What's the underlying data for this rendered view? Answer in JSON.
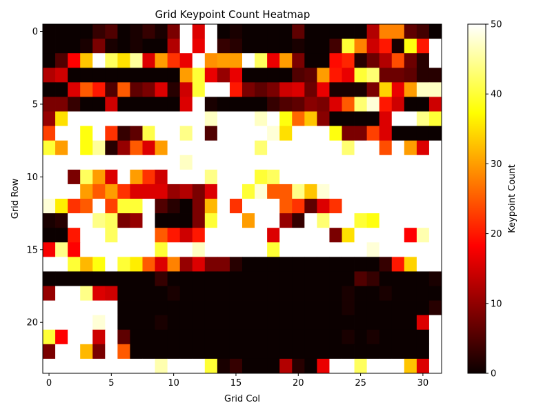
{
  "chart_data": {
    "type": "heatmap",
    "title": "Grid Keypoint Count Heatmap",
    "xlabel": "Grid Col",
    "ylabel": "Grid Row",
    "colorbar_label": "Keypoint Count",
    "colormap": "hot",
    "vmin": 0,
    "vmax": 50,
    "n_rows": 24,
    "n_cols": 32,
    "xticks": [
      0,
      5,
      10,
      15,
      20,
      25,
      30
    ],
    "yticks": [
      0,
      5,
      10,
      15,
      20
    ],
    "colorbar_ticks": [
      0,
      10,
      20,
      30,
      40,
      50
    ],
    "grid": false,
    "values": [
      [
        0,
        0,
        0,
        0,
        3,
        5,
        0,
        1,
        3,
        1,
        8,
        50,
        15,
        50,
        0,
        1,
        0,
        0,
        0,
        0,
        6,
        0,
        0,
        0,
        0,
        0,
        12,
        28,
        28,
        6,
        4,
        0
      ],
      [
        0,
        0,
        0,
        1,
        8,
        1,
        0,
        1,
        0,
        0,
        12,
        50,
        16,
        50,
        3,
        2,
        0,
        0,
        0,
        0,
        1,
        0,
        0,
        4,
        40,
        28,
        14,
        20,
        1,
        38,
        20,
        50
      ],
      [
        0,
        5,
        18,
        33,
        50,
        42,
        35,
        45,
        15,
        30,
        22,
        16,
        50,
        29,
        30,
        30,
        50,
        42,
        16,
        30,
        8,
        0,
        0,
        19,
        21,
        2,
        7,
        12,
        24,
        7,
        2,
        50
      ],
      [
        12,
        14,
        0,
        0,
        0,
        0,
        0,
        0,
        0,
        0,
        0,
        30,
        40,
        16,
        10,
        16,
        0,
        0,
        0,
        0,
        5,
        6,
        30,
        20,
        16,
        40,
        43,
        7,
        7,
        6,
        2,
        2
      ],
      [
        0,
        0,
        15,
        25,
        20,
        5,
        25,
        6,
        8,
        15,
        2,
        14,
        40,
        50,
        50,
        20,
        8,
        6,
        8,
        14,
        15,
        7,
        16,
        1,
        1,
        1,
        8,
        34,
        16,
        30,
        47,
        47
      ],
      [
        8,
        8,
        3,
        0,
        0,
        14,
        0,
        0,
        0,
        0,
        0,
        15,
        50,
        1,
        0,
        0,
        0,
        0,
        3,
        5,
        6,
        9,
        8,
        15,
        25,
        43,
        48,
        20,
        14,
        0,
        0,
        14
      ],
      [
        10,
        35,
        50,
        50,
        50,
        50,
        50,
        50,
        50,
        50,
        50,
        50,
        50,
        47,
        50,
        50,
        50,
        47,
        50,
        38,
        26,
        33,
        9,
        0,
        0,
        0,
        0,
        15,
        50,
        50,
        44,
        40
      ],
      [
        23,
        50,
        50,
        38,
        50,
        22,
        3,
        6,
        41,
        50,
        50,
        44,
        50,
        5,
        50,
        50,
        50,
        50,
        48,
        35,
        50,
        50,
        50,
        38,
        8,
        8,
        23,
        15,
        0,
        0,
        0,
        0
      ],
      [
        40,
        30,
        50,
        38,
        45,
        2,
        10,
        25,
        15,
        30,
        50,
        50,
        50,
        50,
        50,
        50,
        50,
        43,
        50,
        50,
        50,
        50,
        50,
        50,
        43,
        50,
        50,
        24,
        50,
        30,
        15,
        50
      ],
      [
        50,
        50,
        50,
        50,
        50,
        50,
        50,
        50,
        50,
        50,
        50,
        47,
        50,
        50,
        50,
        50,
        50,
        50,
        50,
        50,
        50,
        50,
        50,
        50,
        50,
        50,
        50,
        50,
        50,
        50,
        50,
        50
      ],
      [
        50,
        50,
        8,
        42,
        30,
        15,
        50,
        30,
        22,
        14,
        50,
        50,
        50,
        44,
        50,
        50,
        50,
        40,
        42,
        50,
        50,
        50,
        50,
        50,
        50,
        50,
        50,
        50,
        50,
        50,
        50,
        50
      ],
      [
        50,
        50,
        50,
        30,
        25,
        30,
        22,
        15,
        15,
        15,
        10,
        12,
        8,
        15,
        50,
        50,
        40,
        48,
        25,
        25,
        44,
        33,
        48,
        50,
        50,
        50,
        50,
        50,
        50,
        50,
        50,
        50
      ],
      [
        48,
        36,
        22,
        25,
        50,
        23,
        40,
        40,
        50,
        5,
        2,
        0,
        8,
        32,
        50,
        22,
        50,
        50,
        50,
        25,
        22,
        6,
        15,
        22,
        50,
        50,
        50,
        50,
        50,
        50,
        50,
        50
      ],
      [
        1,
        2,
        50,
        50,
        44,
        42,
        8,
        10,
        50,
        0,
        0,
        0,
        8,
        40,
        50,
        50,
        30,
        50,
        50,
        10,
        3,
        50,
        43,
        50,
        50,
        40,
        38,
        50,
        50,
        50,
        50,
        50
      ],
      [
        0,
        0,
        20,
        50,
        50,
        42,
        50,
        50,
        50,
        25,
        20,
        14,
        20,
        50,
        50,
        50,
        50,
        50,
        15,
        50,
        50,
        50,
        50,
        8,
        35,
        50,
        50,
        50,
        50,
        18,
        46,
        50
      ],
      [
        17,
        44,
        18,
        50,
        50,
        50,
        50,
        50,
        50,
        40,
        50,
        50,
        47,
        50,
        50,
        50,
        50,
        50,
        40,
        50,
        50,
        50,
        50,
        50,
        50,
        50,
        48,
        50,
        50,
        50,
        50,
        50
      ],
      [
        50,
        50,
        40,
        32,
        38,
        50,
        40,
        36,
        25,
        15,
        28,
        10,
        15,
        8,
        8,
        2,
        0,
        0,
        0,
        0,
        0,
        0,
        0,
        0,
        0,
        0,
        0,
        3,
        20,
        34,
        50,
        50
      ],
      [
        0,
        0,
        0,
        0,
        0,
        0,
        0,
        0,
        0,
        3,
        0,
        0,
        0,
        0,
        0,
        0,
        0,
        0,
        0,
        0,
        0,
        0,
        0,
        0,
        0,
        5,
        3,
        0,
        0,
        0,
        0,
        1
      ],
      [
        10,
        50,
        50,
        44,
        15,
        14,
        0,
        0,
        0,
        0,
        1,
        0,
        0,
        0,
        0,
        0,
        0,
        0,
        0,
        0,
        0,
        0,
        0,
        0,
        1,
        0,
        0,
        1,
        0,
        0,
        0,
        0
      ],
      [
        50,
        50,
        50,
        50,
        50,
        50,
        0,
        0,
        0,
        0,
        0,
        0,
        0,
        0,
        0,
        0,
        0,
        0,
        0,
        0,
        0,
        0,
        0,
        0,
        1,
        0,
        0,
        0,
        0,
        0,
        0,
        2
      ],
      [
        50,
        50,
        50,
        50,
        48,
        50,
        0,
        0,
        0,
        1,
        0,
        0,
        0,
        0,
        0,
        0,
        0,
        0,
        0,
        0,
        0,
        0,
        0,
        0,
        0,
        0,
        0,
        0,
        0,
        0,
        15,
        50
      ],
      [
        40,
        18,
        50,
        50,
        14,
        50,
        6,
        0,
        0,
        0,
        0,
        0,
        0,
        0,
        0,
        0,
        0,
        0,
        0,
        0,
        0,
        0,
        0,
        0,
        1,
        0,
        1,
        0,
        0,
        0,
        0,
        50
      ],
      [
        8,
        50,
        50,
        32,
        8,
        50,
        25,
        0,
        0,
        0,
        0,
        0,
        0,
        0,
        0,
        0,
        0,
        0,
        0,
        0,
        0,
        0,
        0,
        0,
        0,
        0,
        0,
        0,
        0,
        0,
        0,
        50
      ],
      [
        50,
        50,
        50,
        50,
        50,
        50,
        50,
        50,
        50,
        46,
        50,
        50,
        50,
        40,
        1,
        3,
        0,
        0,
        0,
        12,
        2,
        0,
        16,
        50,
        50,
        42,
        50,
        50,
        50,
        33,
        15,
        50
      ]
    ]
  }
}
